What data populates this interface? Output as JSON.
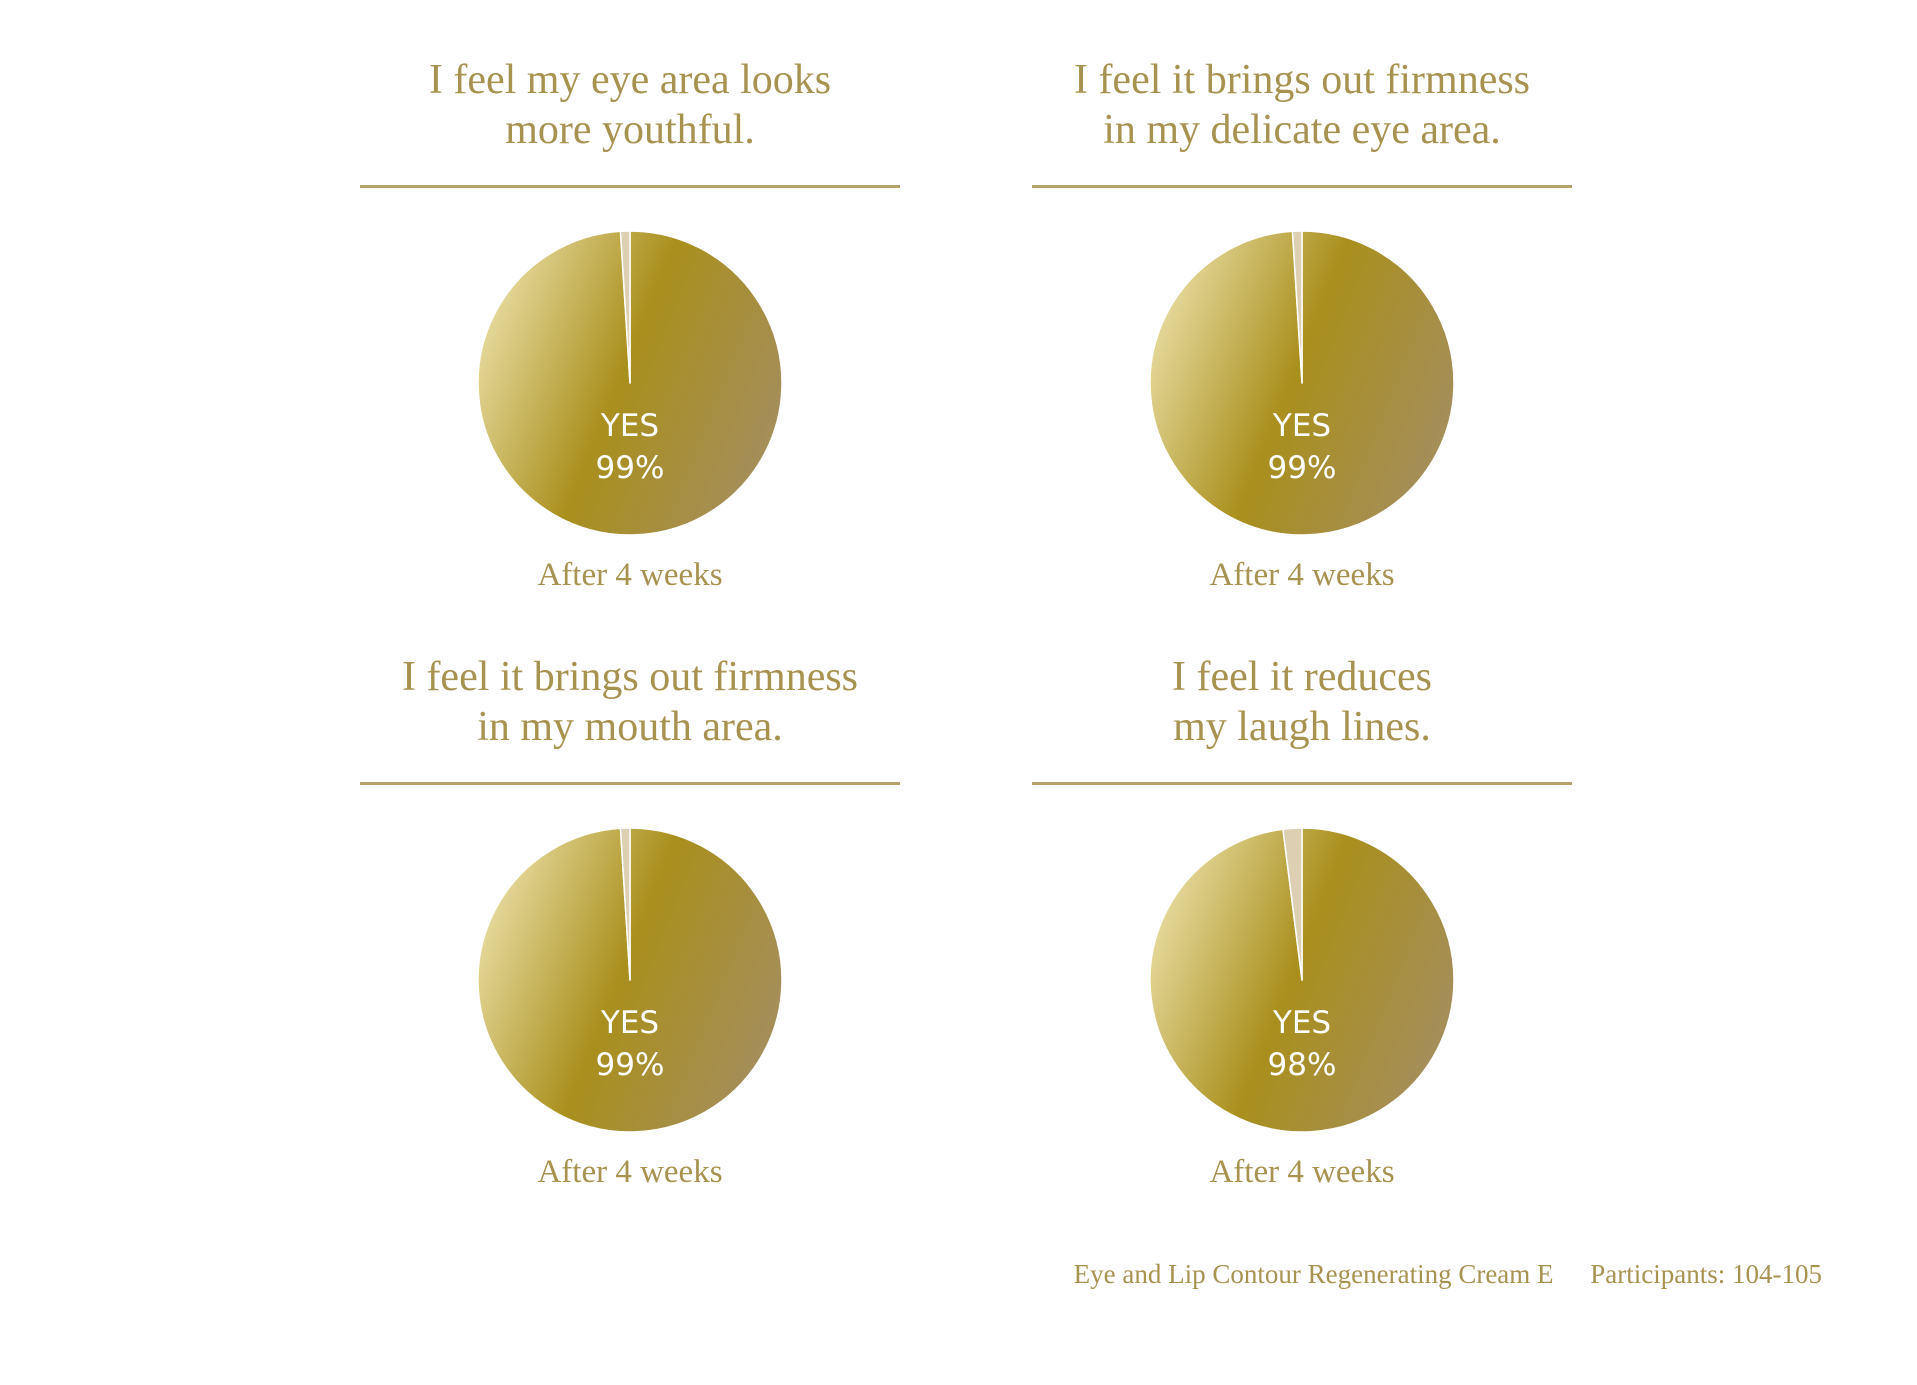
{
  "colors": {
    "text": "#a8924f",
    "rule": "#b5a36b",
    "gradient_light": "#efe5b0",
    "gradient_mid": "#a98f1c",
    "gradient_dark": "#a58e58",
    "no_slice": "#ddd0b2"
  },
  "chart_data": [
    {
      "type": "pie",
      "title": [
        "I feel my eye area looks",
        "more youthful."
      ],
      "categories": [
        "YES",
        "NO"
      ],
      "values": [
        99,
        1
      ],
      "label": "YES",
      "label_value": "99%",
      "caption": "After 4 weeks"
    },
    {
      "type": "pie",
      "title": [
        "I feel it brings out firmness",
        "in my delicate eye area."
      ],
      "categories": [
        "YES",
        "NO"
      ],
      "values": [
        99,
        1
      ],
      "label": "YES",
      "label_value": "99%",
      "caption": "After 4 weeks"
    },
    {
      "type": "pie",
      "title": [
        "I feel it brings out firmness",
        "in my mouth area."
      ],
      "categories": [
        "YES",
        "NO"
      ],
      "values": [
        99,
        1
      ],
      "label": "YES",
      "label_value": "99%",
      "caption": "After 4 weeks"
    },
    {
      "type": "pie",
      "title": [
        "I feel it reduces",
        "my laugh lines."
      ],
      "categories": [
        "YES",
        "NO"
      ],
      "values": [
        98,
        2
      ],
      "label": "YES",
      "label_value": "98%",
      "caption": "After 4 weeks"
    }
  ],
  "footer": {
    "product": "Eye and Lip Contour Regenerating Cream E",
    "participants": "Participants: 104-105"
  }
}
